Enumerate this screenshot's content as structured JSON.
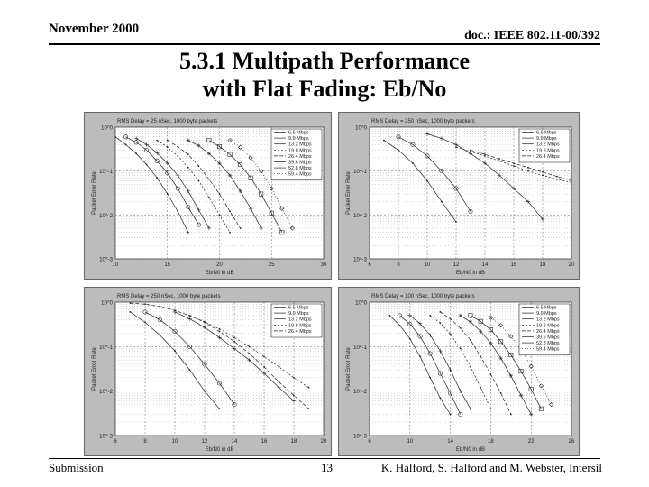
{
  "header": {
    "date": "November 2000",
    "doc": "doc.: IEEE 802.11-00/392"
  },
  "title": {
    "line1": "5.3.1 Multipath Performance",
    "line2": "with Flat Fading: Eb/No"
  },
  "footer": {
    "left": "Submission",
    "page": "13",
    "right": "K. Halford, S. Halford and M. Webster, Intersil"
  },
  "chart_data": [
    {
      "type": "line",
      "title": "RMS Delay = 25 nSec, 1000 byte packets",
      "xlabel": "Eb/N0 in dB",
      "ylabel": "Packet Error Rate",
      "xlim": [
        10,
        30
      ],
      "ylim": [
        0.001,
        1
      ],
      "yscale": "log",
      "xticks": [
        10,
        15,
        20,
        25,
        30
      ],
      "yticks": [
        "10^0",
        "10^-1",
        "10^-2",
        "10^-3"
      ],
      "grid": true,
      "legend": "top-right",
      "series": [
        {
          "name": "6.5 Mbps",
          "x": [
            10,
            11,
            12,
            13,
            14,
            15,
            16,
            17
          ],
          "y": [
            0.6,
            0.4,
            0.25,
            0.14,
            0.07,
            0.03,
            0.012,
            0.004
          ]
        },
        {
          "name": "9.9 Mbps",
          "x": [
            11,
            12,
            13,
            14,
            15,
            16,
            17,
            18
          ],
          "y": [
            0.6,
            0.45,
            0.3,
            0.17,
            0.09,
            0.04,
            0.015,
            0.006
          ]
        },
        {
          "name": "13.2 Mbps",
          "x": [
            12,
            13,
            14,
            15,
            16,
            17,
            18,
            19
          ],
          "y": [
            0.55,
            0.4,
            0.26,
            0.15,
            0.08,
            0.035,
            0.013,
            0.005
          ]
        },
        {
          "name": "19.8 Mbps",
          "x": [
            14,
            15,
            16,
            17,
            18,
            19,
            20,
            21
          ],
          "y": [
            0.5,
            0.35,
            0.22,
            0.12,
            0.06,
            0.025,
            0.01,
            0.004
          ]
        },
        {
          "name": "26.4 Mbps",
          "x": [
            15,
            16,
            17,
            18,
            19,
            20,
            21,
            22
          ],
          "y": [
            0.5,
            0.36,
            0.24,
            0.13,
            0.065,
            0.03,
            0.012,
            0.005
          ]
        },
        {
          "name": "39.6 Mbps",
          "x": [
            17,
            18,
            19,
            20,
            21,
            22,
            23,
            24
          ],
          "y": [
            0.5,
            0.38,
            0.25,
            0.15,
            0.08,
            0.035,
            0.014,
            0.005
          ]
        },
        {
          "name": "52.8 Mbps",
          "x": [
            19,
            20,
            21,
            22,
            23,
            24,
            25,
            26
          ],
          "y": [
            0.5,
            0.36,
            0.24,
            0.14,
            0.07,
            0.03,
            0.011,
            0.004
          ]
        },
        {
          "name": "59.4 Mbps",
          "x": [
            21,
            22,
            23,
            24,
            25,
            26,
            27
          ],
          "y": [
            0.5,
            0.35,
            0.2,
            0.1,
            0.04,
            0.014,
            0.005
          ]
        }
      ]
    },
    {
      "type": "line",
      "title": "RMS Delay = 250 nSec, 1000 byte packets",
      "xlabel": "Eb/N0 in dB",
      "ylabel": "Packet Error Rate",
      "xlim": [
        6,
        20
      ],
      "ylim": [
        0.001,
        1
      ],
      "yscale": "log",
      "xticks": [
        6,
        8,
        10,
        12,
        14,
        16,
        18,
        20
      ],
      "yticks": [
        "10^0",
        "10^-1",
        "10^-2",
        "10^-3"
      ],
      "grid": true,
      "legend": "top-right",
      "series": [
        {
          "name": "6.5 Mbps",
          "x": [
            7,
            8,
            9,
            10,
            11,
            12
          ],
          "y": [
            0.5,
            0.3,
            0.15,
            0.06,
            0.02,
            0.007
          ]
        },
        {
          "name": "9.9 Mbps",
          "x": [
            8,
            9,
            10,
            11,
            12,
            13
          ],
          "y": [
            0.6,
            0.4,
            0.22,
            0.1,
            0.04,
            0.012
          ]
        },
        {
          "name": "13.2 Mbps",
          "x": [
            10,
            11,
            12,
            13,
            14,
            15,
            16,
            17,
            18
          ],
          "y": [
            0.7,
            0.55,
            0.4,
            0.25,
            0.15,
            0.08,
            0.04,
            0.02,
            0.008
          ]
        },
        {
          "name": "19.8 Mbps",
          "x": [
            12,
            13,
            14,
            15,
            16,
            17,
            18,
            19,
            20
          ],
          "y": [
            0.35,
            0.28,
            0.22,
            0.17,
            0.13,
            0.1,
            0.08,
            0.065,
            0.055
          ]
        },
        {
          "name": "26.4 Mbps",
          "x": [
            13,
            14,
            15,
            16,
            17,
            18,
            19,
            20
          ],
          "y": [
            0.3,
            0.24,
            0.19,
            0.15,
            0.12,
            0.095,
            0.075,
            0.06
          ]
        }
      ]
    },
    {
      "type": "line",
      "title": "RMS Delay = 250 nSec, 1000 byte packets",
      "xlabel": "Eb/N0 in dB",
      "ylabel": "Packet Error Rate",
      "xlim": [
        6,
        20
      ],
      "ylim": [
        0.001,
        1
      ],
      "yscale": "log",
      "xticks": [
        6,
        8,
        10,
        12,
        14,
        16,
        18,
        20
      ],
      "yticks": [
        "10^0",
        "10^-1",
        "10^-2",
        "10^-3"
      ],
      "grid": true,
      "legend": "top-right",
      "series": [
        {
          "name": "6.5 Mbps",
          "x": [
            7,
            8,
            9,
            10,
            11,
            12,
            13
          ],
          "y": [
            0.6,
            0.35,
            0.18,
            0.08,
            0.03,
            0.01,
            0.004
          ]
        },
        {
          "name": "9.9 Mbps",
          "x": [
            8,
            9,
            10,
            11,
            12,
            13,
            14
          ],
          "y": [
            0.6,
            0.4,
            0.22,
            0.1,
            0.04,
            0.015,
            0.005
          ]
        },
        {
          "name": "13.2 Mbps",
          "x": [
            10,
            11,
            12,
            13,
            14,
            15,
            16,
            17,
            18
          ],
          "y": [
            0.6,
            0.42,
            0.27,
            0.16,
            0.09,
            0.05,
            0.025,
            0.012,
            0.006
          ]
        },
        {
          "name": "19.8 Mbps",
          "x": [
            11,
            12,
            13,
            14,
            15,
            16,
            17,
            18,
            19
          ],
          "y": [
            0.5,
            0.36,
            0.25,
            0.16,
            0.1,
            0.06,
            0.035,
            0.02,
            0.012
          ]
        },
        {
          "name": "26.4 Mbps",
          "x": [
            7,
            8,
            9,
            10,
            11,
            12,
            13,
            14,
            15,
            16,
            17,
            18,
            19
          ],
          "y": [
            0.95,
            0.9,
            0.8,
            0.65,
            0.5,
            0.35,
            0.22,
            0.13,
            0.07,
            0.035,
            0.016,
            0.008,
            0.004
          ]
        }
      ]
    },
    {
      "type": "line",
      "title": "RMS Delay = 100 nSec, 1000 byte packets",
      "xlabel": "Eb/N0 in dB",
      "ylabel": "Packet Error Rate",
      "xlim": [
        6,
        26
      ],
      "ylim": [
        0.001,
        1
      ],
      "yscale": "log",
      "xticks": [
        6,
        10,
        14,
        18,
        22,
        26
      ],
      "yticks": [
        "10^0",
        "10^-1",
        "10^-2",
        "10^-3"
      ],
      "grid": true,
      "legend": "top-right",
      "series": [
        {
          "name": "6.5 Mbps",
          "x": [
            8,
            9,
            10,
            11,
            12,
            13,
            14
          ],
          "y": [
            0.5,
            0.3,
            0.15,
            0.06,
            0.02,
            0.007,
            0.003
          ]
        },
        {
          "name": "9.9 Mbps",
          "x": [
            9,
            10,
            11,
            12,
            13,
            14,
            15
          ],
          "y": [
            0.5,
            0.32,
            0.17,
            0.07,
            0.025,
            0.009,
            0.003
          ]
        },
        {
          "name": "13.2 Mbps",
          "x": [
            10,
            11,
            12,
            13,
            14,
            15,
            16
          ],
          "y": [
            0.5,
            0.33,
            0.18,
            0.08,
            0.03,
            0.01,
            0.004
          ]
        },
        {
          "name": "19.8 Mbps",
          "x": [
            12,
            13,
            14,
            15,
            16,
            17,
            18
          ],
          "y": [
            0.5,
            0.34,
            0.19,
            0.09,
            0.035,
            0.012,
            0.004
          ]
        },
        {
          "name": "26.4 Mbps",
          "x": [
            13,
            14,
            15,
            16,
            17,
            18,
            19,
            20
          ],
          "y": [
            0.6,
            0.42,
            0.26,
            0.14,
            0.06,
            0.024,
            0.009,
            0.003
          ]
        },
        {
          "name": "39.6 Mbps",
          "x": [
            15,
            16,
            17,
            18,
            19,
            20,
            21,
            22
          ],
          "y": [
            0.5,
            0.36,
            0.22,
            0.12,
            0.055,
            0.022,
            0.008,
            0.003
          ]
        },
        {
          "name": "52.8 Mbps",
          "x": [
            16,
            17,
            18,
            19,
            20,
            21,
            22,
            23
          ],
          "y": [
            0.5,
            0.37,
            0.24,
            0.13,
            0.065,
            0.028,
            0.011,
            0.004
          ]
        },
        {
          "name": "59.4 Mbps",
          "x": [
            18,
            19,
            20,
            21,
            22,
            23,
            24
          ],
          "y": [
            0.45,
            0.3,
            0.17,
            0.085,
            0.036,
            0.013,
            0.005
          ]
        }
      ]
    }
  ]
}
